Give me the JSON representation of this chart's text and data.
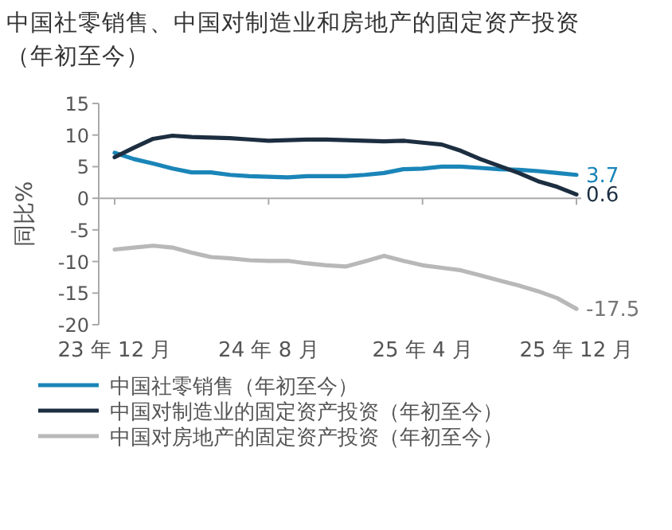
{
  "chart_data": {
    "type": "line",
    "title": "中国社零销售、中国对制造业和房地产的固定资产投资（年初至今）",
    "ylabel": "同比%",
    "categories": [
      "23 年 12 月",
      null,
      null,
      null,
      null,
      null,
      null,
      null,
      "24 年 8 月",
      null,
      null,
      null,
      null,
      null,
      null,
      null,
      "25 年 4 月",
      null,
      null,
      null,
      null,
      null,
      null,
      null,
      "25 年 12 月"
    ],
    "ylim": [
      -20,
      15
    ],
    "yticks": [
      -20,
      -15,
      -10,
      -5,
      0,
      5,
      10,
      15
    ],
    "legend": "bottom",
    "series": [
      {
        "name": "中国社零销售（年初至今）",
        "color": "#1a85b8",
        "values": [
          7.2,
          6.2,
          5.5,
          4.7,
          4.1,
          4.1,
          3.7,
          3.5,
          3.4,
          3.3,
          3.5,
          3.5,
          3.5,
          3.7,
          4.0,
          4.6,
          4.7,
          5.0,
          5.0,
          4.8,
          4.6,
          4.5,
          4.3,
          4.0,
          3.7
        ],
        "value_labels": [
          null,
          null,
          null,
          null,
          null,
          null,
          null,
          null,
          null,
          null,
          null,
          null,
          null,
          null,
          null,
          null,
          null,
          null,
          null,
          null,
          null,
          null,
          null,
          null,
          "3.7"
        ]
      },
      {
        "name": "中国对制造业的固定资产投资（年初至今）",
        "color": "#1c2e40",
        "values": [
          6.5,
          8.0,
          9.4,
          9.9,
          9.7,
          9.6,
          9.5,
          9.3,
          9.1,
          9.2,
          9.3,
          9.3,
          9.2,
          9.1,
          9.0,
          9.1,
          8.8,
          8.5,
          7.5,
          6.2,
          5.1,
          4.0,
          2.7,
          1.8,
          0.6
        ],
        "value_labels": [
          null,
          null,
          null,
          null,
          null,
          null,
          null,
          null,
          null,
          null,
          null,
          null,
          null,
          null,
          null,
          null,
          null,
          null,
          null,
          null,
          null,
          null,
          null,
          null,
          "0.6"
        ]
      },
      {
        "name": "中国对房地产的固定资产投资（年初至今）",
        "color": "#b8b8b8",
        "values": [
          -8.1,
          -7.8,
          -7.5,
          -7.8,
          -8.6,
          -9.3,
          -9.5,
          -9.8,
          -9.9,
          -9.9,
          -10.3,
          -10.6,
          -10.8,
          -10.0,
          -9.1,
          -9.9,
          -10.6,
          -11.0,
          -11.4,
          -12.2,
          -13.0,
          -13.8,
          -14.7,
          -15.8,
          -17.5
        ],
        "value_labels": [
          null,
          null,
          null,
          null,
          null,
          null,
          null,
          null,
          null,
          null,
          null,
          null,
          null,
          null,
          null,
          null,
          null,
          null,
          null,
          null,
          null,
          null,
          null,
          null,
          "-17.5"
        ]
      }
    ]
  }
}
